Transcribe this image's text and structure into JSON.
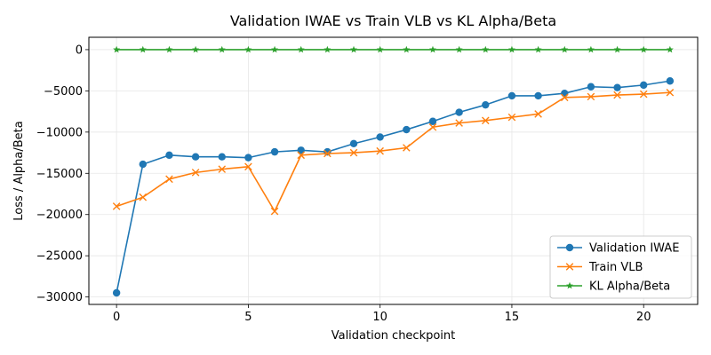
{
  "chart_data": {
    "type": "line",
    "title": "Validation IWAE vs Train VLB vs KL Alpha/Beta",
    "xlabel": "Validation checkpoint",
    "ylabel": "Loss / Alpha/Beta",
    "x": [
      0,
      1,
      2,
      3,
      4,
      5,
      6,
      7,
      8,
      9,
      10,
      11,
      12,
      13,
      14,
      15,
      16,
      17,
      18,
      19,
      20,
      21
    ],
    "xlim": [
      -1.05,
      22.05
    ],
    "ylim": [
      -30900,
      1500
    ],
    "xticks": [
      0,
      5,
      10,
      15,
      20
    ],
    "yticks": [
      0,
      -5000,
      -10000,
      -15000,
      -20000,
      -25000,
      -30000
    ],
    "xtick_labels": [
      "0",
      "5",
      "10",
      "15",
      "20"
    ],
    "ytick_labels": [
      "0",
      "−5000",
      "−10000",
      "−15000",
      "−20000",
      "−25000",
      "−30000"
    ],
    "grid": true,
    "legend_position": "lower-right",
    "series": [
      {
        "name": "Validation IWAE",
        "color": "#1f77b4",
        "marker": "circle",
        "values": [
          -29500,
          -13900,
          -12800,
          -13000,
          -13000,
          -13100,
          -12400,
          -12200,
          -12400,
          -11400,
          -10600,
          -9700,
          -8700,
          -7600,
          -6700,
          -5600,
          -5600,
          -5300,
          -4500,
          -4600,
          -4300,
          -3800
        ]
      },
      {
        "name": "Train VLB",
        "color": "#ff7f0e",
        "marker": "x",
        "values": [
          -19000,
          -17900,
          -15700,
          -14900,
          -14500,
          -14200,
          -19600,
          -12800,
          -12600,
          -12500,
          -12300,
          -11900,
          -9400,
          -8900,
          -8600,
          -8200,
          -7800,
          -5800,
          -5700,
          -5500,
          -5400,
          -5200
        ]
      },
      {
        "name": "KL Alpha/Beta",
        "color": "#2ca02c",
        "marker": "star",
        "values": [
          0,
          0,
          0,
          0,
          0,
          0,
          0,
          0,
          0,
          0,
          0,
          0,
          0,
          0,
          0,
          0,
          0,
          0,
          0,
          0,
          0,
          0
        ]
      }
    ]
  }
}
